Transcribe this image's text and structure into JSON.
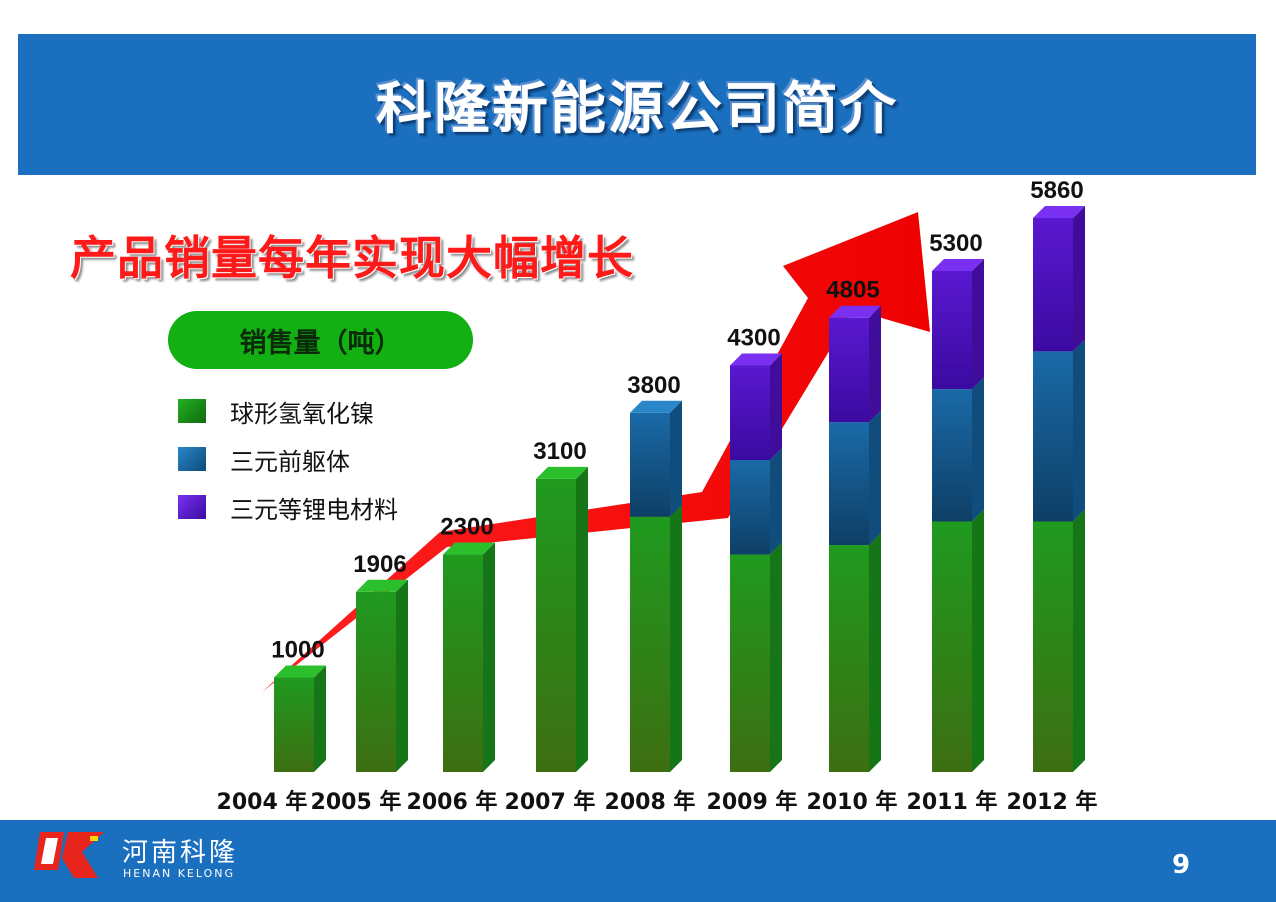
{
  "slide": {
    "title": "科隆新能源公司简介",
    "subtitle": "产品销量每年实现大幅增长",
    "page_number": "9"
  },
  "logo": {
    "name_cn": "河南科隆",
    "name_en": "HENAN KELONG"
  },
  "chart_data": {
    "type": "bar",
    "stacked": true,
    "title": "销售量（吨）",
    "categories": [
      "2004 年",
      "2005 年",
      "2006 年",
      "2007 年",
      "2008 年",
      "2009 年",
      "2010 年",
      "2011 年",
      "2012 年"
    ],
    "totals": [
      1000,
      1906,
      2300,
      3100,
      3800,
      4300,
      4805,
      5300,
      5860
    ],
    "series": [
      {
        "name": "球形氢氧化镍",
        "color": "#1f9a1f",
        "values": [
          1000,
          1906,
          2300,
          3100,
          2700,
          2300,
          2400,
          2650,
          2650
        ]
      },
      {
        "name": "三元前躯体",
        "color": "#1a6aa8",
        "values": [
          0,
          0,
          0,
          0,
          1100,
          1000,
          1300,
          1400,
          1800
        ]
      },
      {
        "name": "三元等锂电材料",
        "color": "#5a18d0",
        "values": [
          0,
          0,
          0,
          0,
          0,
          1000,
          1105,
          1250,
          1410
        ]
      }
    ],
    "legend_position": "top-left",
    "ylim": [
      0,
      5860
    ],
    "grid": false,
    "trend_arrow": true
  }
}
